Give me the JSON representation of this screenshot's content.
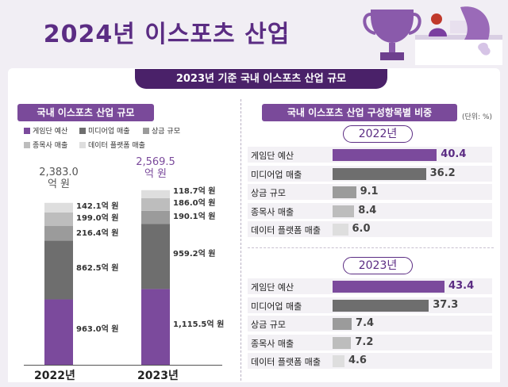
{
  "title": "2024년 이스포츠 산업",
  "subtitle": "2023년 기준 국내 이스포츠 산업 규모",
  "unit_note": "(단위: %)",
  "colors": {
    "team_budget": "#7b4a9c",
    "media": "#6e6e6e",
    "prize": "#9b9b9b",
    "league": "#bdbdbd",
    "data": "#dedede",
    "accent": "#5b2c83"
  },
  "chart_data": [
    {
      "type": "bar",
      "title": "국내 이스포츠 산업 규모",
      "stacked": true,
      "categories": [
        "2022년",
        "2023년"
      ],
      "totals": [
        2383.0,
        2569.5
      ],
      "total_labels": [
        [
          "2,383.0",
          "억 원"
        ],
        [
          "2,569.5",
          "억 원"
        ]
      ],
      "legend": [
        "게임단 예산",
        "미디어업 매출",
        "상금 규모",
        "종목사 매출",
        "데이터 플랫폼 매출"
      ],
      "series": [
        {
          "name": "게임단 예산",
          "values": [
            963.0,
            1115.5
          ],
          "labels": [
            "963.0억 원",
            "1,115.5억 원"
          ]
        },
        {
          "name": "미디어업 매출",
          "values": [
            862.5,
            959.2
          ],
          "labels": [
            "862.5억 원",
            "959.2억 원"
          ]
        },
        {
          "name": "상금 규모",
          "values": [
            216.4,
            190.1
          ],
          "labels": [
            "216.4억 원",
            "190.1억 원"
          ]
        },
        {
          "name": "종목사 매출",
          "values": [
            199.0,
            186.0
          ],
          "labels": [
            "199.0억 원",
            "186.0억 원"
          ]
        },
        {
          "name": "데이터 플랫폼 매출",
          "values": [
            142.1,
            118.7
          ],
          "labels": [
            "142.1억 원",
            "118.7억 원"
          ]
        }
      ],
      "xlabel": "",
      "ylabel": ""
    },
    {
      "type": "bar",
      "orientation": "horizontal",
      "title": "국내 이스포츠 산업 구성항목별 비중",
      "unit": "%",
      "panels": [
        {
          "year": "2022년",
          "categories": [
            "게임단 예산",
            "미디어업 매출",
            "상금 규모",
            "종목사 매출",
            "데이터 플랫폼 매출"
          ],
          "values": [
            40.4,
            36.2,
            9.1,
            8.4,
            6.0
          ],
          "value_labels": [
            "40.4",
            "36.2",
            "9.1",
            "8.4",
            "6.0"
          ]
        },
        {
          "year": "2023년",
          "categories": [
            "게임단 예산",
            "미디어업 매출",
            "상금 규모",
            "종목사 매출",
            "데이터 플랫폼 매출"
          ],
          "values": [
            43.4,
            37.3,
            7.4,
            7.2,
            4.6
          ],
          "value_labels": [
            "43.4",
            "37.3",
            "7.4",
            "7.2",
            "4.6"
          ]
        }
      ]
    }
  ]
}
